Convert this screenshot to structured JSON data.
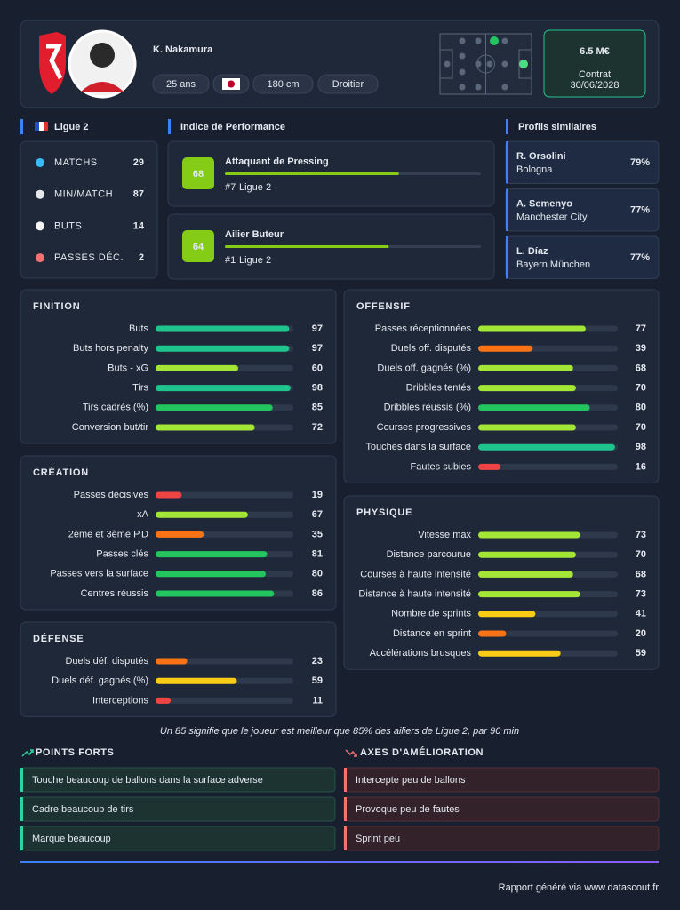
{
  "header": {
    "name": "K. Nakamura",
    "age": "25 ans",
    "height": "180 cm",
    "foot": "Droitier",
    "value": "6.5 M€",
    "contract_label": "Contrat",
    "contract_date": "30/06/2028"
  },
  "league": {
    "title": "Ligue 2",
    "stats": [
      {
        "label": "MATCHS",
        "value": 29
      },
      {
        "label": "MIN/MATCH",
        "value": 87
      },
      {
        "label": "BUTS",
        "value": 14
      },
      {
        "label": "PASSES DÉC.",
        "value": 2
      }
    ]
  },
  "performance": {
    "title": "Indice de Performance",
    "profiles": [
      {
        "score": 68,
        "name": "Attaquant de Pressing",
        "rank": "#7",
        "league": "Ligue 2"
      },
      {
        "score": 64,
        "name": "Ailier Buteur",
        "rank": "#1",
        "league": "Ligue 2"
      }
    ]
  },
  "similar": {
    "title": "Profils similaires",
    "players": [
      {
        "name": "R. Orsolini",
        "club": "Bologna",
        "match": "79%"
      },
      {
        "name": "A. Semenyo",
        "club": "Manchester City",
        "match": "77%"
      },
      {
        "name": "L. Díaz",
        "club": "Bayern München",
        "match": "77%"
      }
    ]
  },
  "panels": [
    {
      "title": "FINITION",
      "rows": [
        {
          "label": "Buts",
          "value": 97
        },
        {
          "label": "Buts hors penalty",
          "value": 97
        },
        {
          "label": "Buts - xG",
          "value": 60
        },
        {
          "label": "Tirs",
          "value": 98
        },
        {
          "label": "Tirs cadrés (%)",
          "value": 85
        },
        {
          "label": "Conversion but/tir",
          "value": 72
        }
      ]
    },
    {
      "title": "CRÉATION",
      "rows": [
        {
          "label": "Passes décisives",
          "value": 19
        },
        {
          "label": "xA",
          "value": 67
        },
        {
          "label": "2ème et 3ème P.D",
          "value": 35
        },
        {
          "label": "Passes clés",
          "value": 81
        },
        {
          "label": "Passes vers la surface",
          "value": 80
        },
        {
          "label": "Centres réussis",
          "value": 86
        }
      ]
    },
    {
      "title": "DÉFENSE",
      "rows": [
        {
          "label": "Duels déf. disputés",
          "value": 23
        },
        {
          "label": "Duels déf. gagnés (%)",
          "value": 59
        },
        {
          "label": "Interceptions",
          "value": 11
        }
      ]
    },
    {
      "title": "OFFENSIF",
      "rows": [
        {
          "label": "Passes réceptionnées",
          "value": 77
        },
        {
          "label": "Duels off. disputés",
          "value": 39
        },
        {
          "label": "Duels off. gagnés (%)",
          "value": 68
        },
        {
          "label": "Dribbles tentés",
          "value": 70
        },
        {
          "label": "Dribbles réussis (%)",
          "value": 80
        },
        {
          "label": "Courses progressives",
          "value": 70
        },
        {
          "label": "Touches dans la surface",
          "value": 98
        },
        {
          "label": "Fautes subies",
          "value": 16
        }
      ]
    },
    {
      "title": "PHYSIQUE",
      "rows": [
        {
          "label": "Vitesse max",
          "value": 73
        },
        {
          "label": "Distance parcourue",
          "value": 70
        },
        {
          "label": "Courses à haute intensité",
          "value": 68
        },
        {
          "label": "Distance à haute intensité",
          "value": 73
        },
        {
          "label": "Nombre de sprints",
          "value": 41
        },
        {
          "label": "Distance en sprint",
          "value": 20
        },
        {
          "label": "Accélérations brusques",
          "value": 59
        }
      ]
    }
  ],
  "footnote": "Un 85 signifie que le joueur est meilleur que 85% des ailiers de Ligue 2, par 90 min",
  "strengths": {
    "title": "POINTS FORTS",
    "items": [
      "Touche beaucoup de ballons dans la surface adverse",
      "Cadre beaucoup de tirs",
      "Marque beaucoup"
    ]
  },
  "improvements": {
    "title": "AXES D'AMÉLIORATION",
    "items": [
      "Intercepte peu de ballons",
      "Provoque peu de fautes",
      "Sprint peu"
    ]
  },
  "footer": "Rapport généré via www.datascout.fr"
}
